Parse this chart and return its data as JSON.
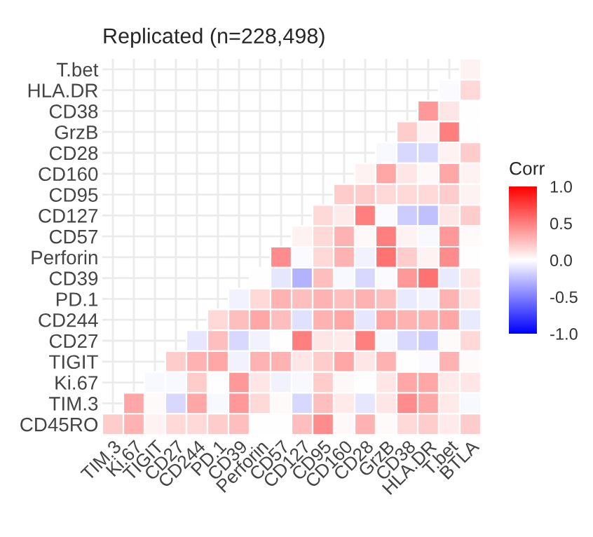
{
  "chart_data": {
    "type": "heatmap",
    "title": "Replicated (n=228,498)",
    "clabel": "Corr",
    "categories": [
      "TIM.3",
      "Ki.67",
      "TIGIT",
      "CD27",
      "CD244",
      "PD.1",
      "CD39",
      "Perforin",
      "CD57",
      "CD127",
      "CD95",
      "CD160",
      "CD28",
      "GrzB",
      "CD38",
      "HLA.DR",
      "T.bet",
      "BTLA"
    ],
    "y_categories": [
      "T.bet",
      "HLA.DR",
      "CD38",
      "GrzB",
      "CD28",
      "CD160",
      "CD95",
      "CD127",
      "CD57",
      "Perforin",
      "CD39",
      "PD.1",
      "CD244",
      "CD27",
      "TIGIT",
      "Ki.67",
      "TIM.3",
      "CD45RO"
    ],
    "cells": [
      [
        null,
        null,
        null,
        null,
        null,
        null,
        null,
        null,
        null,
        null,
        null,
        null,
        null,
        null,
        null,
        null,
        null,
        0.05
      ],
      [
        null,
        null,
        null,
        null,
        null,
        null,
        null,
        null,
        null,
        null,
        null,
        null,
        null,
        null,
        null,
        null,
        -0.02,
        0.15
      ],
      [
        null,
        null,
        null,
        null,
        null,
        null,
        null,
        null,
        null,
        null,
        null,
        null,
        null,
        null,
        null,
        0.4,
        0.1,
        0.0
      ],
      [
        null,
        null,
        null,
        null,
        null,
        null,
        null,
        null,
        null,
        null,
        null,
        null,
        null,
        null,
        0.2,
        0.05,
        0.5,
        0.0
      ],
      [
        null,
        null,
        null,
        null,
        null,
        null,
        null,
        null,
        null,
        null,
        null,
        null,
        null,
        -0.03,
        -0.15,
        -0.15,
        0.05,
        0.2
      ],
      [
        null,
        null,
        null,
        null,
        null,
        null,
        null,
        null,
        null,
        null,
        null,
        null,
        0.05,
        0.35,
        0.1,
        0.03,
        0.35,
        0.05
      ],
      [
        null,
        null,
        null,
        null,
        null,
        null,
        null,
        null,
        null,
        null,
        null,
        0.2,
        0.2,
        0.15,
        0.15,
        0.15,
        0.2,
        0.05
      ],
      [
        null,
        null,
        null,
        null,
        null,
        null,
        null,
        null,
        null,
        null,
        0.15,
        0.08,
        0.5,
        -0.02,
        -0.2,
        -0.25,
        0.1,
        0.2
      ],
      [
        null,
        null,
        null,
        null,
        null,
        null,
        null,
        null,
        null,
        0.05,
        0.15,
        0.3,
        0.03,
        0.5,
        0.05,
        -0.03,
        0.4,
        0.02
      ],
      [
        null,
        null,
        null,
        null,
        null,
        null,
        null,
        null,
        0.45,
        -0.02,
        0.15,
        0.3,
        -0.05,
        0.55,
        0.2,
        0.05,
        0.45,
        0.0
      ],
      [
        null,
        null,
        null,
        null,
        null,
        null,
        null,
        0.0,
        -0.1,
        -0.3,
        0.25,
        -0.03,
        -0.15,
        -0.02,
        0.4,
        0.55,
        -0.08,
        0.1
      ],
      [
        null,
        null,
        null,
        null,
        null,
        null,
        -0.05,
        0.15,
        0.3,
        0.25,
        0.3,
        0.25,
        0.3,
        0.25,
        -0.08,
        -0.05,
        0.3,
        0.1
      ],
      [
        null,
        null,
        null,
        null,
        null,
        0.15,
        0.25,
        0.35,
        0.25,
        -0.12,
        0.3,
        0.35,
        -0.1,
        0.35,
        0.3,
        0.3,
        0.35,
        -0.08
      ],
      [
        null,
        null,
        null,
        null,
        -0.1,
        0.25,
        -0.15,
        -0.05,
        0.0,
        0.5,
        0.1,
        0.08,
        0.5,
        -0.03,
        -0.15,
        -0.2,
        0.02,
        0.15
      ],
      [
        null,
        null,
        null,
        0.2,
        0.3,
        0.35,
        -0.05,
        0.3,
        0.3,
        0.1,
        0.2,
        0.35,
        0.1,
        0.3,
        0.0,
        -0.02,
        0.3,
        0.02
      ],
      [
        null,
        null,
        -0.03,
        -0.03,
        0.2,
        0.0,
        0.4,
        0.1,
        -0.05,
        -0.03,
        0.2,
        0.03,
        0.0,
        0.1,
        0.35,
        0.35,
        0.08,
        0.1
      ],
      [
        null,
        0.35,
        0.02,
        -0.15,
        0.35,
        -0.03,
        0.4,
        0.15,
        0.02,
        -0.15,
        0.25,
        0.08,
        -0.1,
        0.1,
        0.45,
        0.35,
        0.08,
        -0.03
      ],
      [
        0.2,
        0.3,
        0.05,
        0.15,
        0.15,
        0.2,
        0.25,
        0.0,
        0.0,
        0.25,
        0.45,
        0.03,
        0.3,
        0.02,
        0.15,
        0.2,
        0.08,
        0.2
      ]
    ],
    "clim": [
      -1,
      1
    ],
    "cticks": [
      {
        "value": -1,
        "label": "-1.0"
      },
      {
        "value": -0.5,
        "label": "-0.5"
      },
      {
        "value": 0,
        "label": "0.0"
      },
      {
        "value": 0.5,
        "label": "0.5"
      },
      {
        "value": 1,
        "label": "1.0"
      }
    ],
    "grid": true
  }
}
